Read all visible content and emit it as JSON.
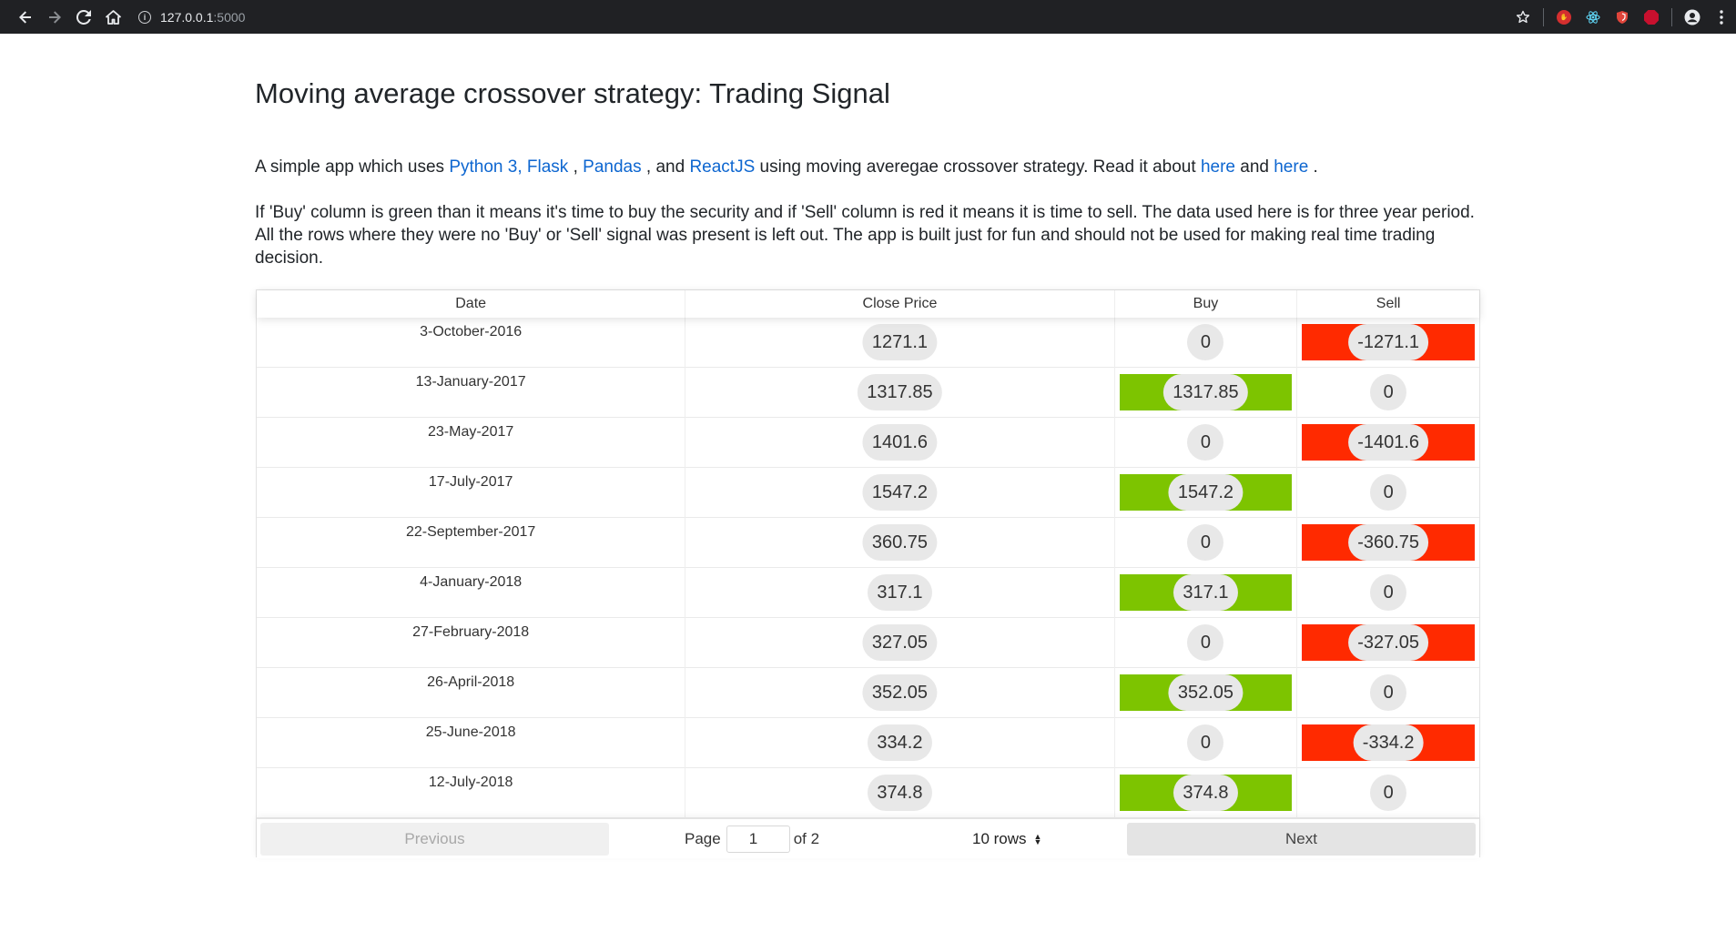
{
  "browser": {
    "url_host": "127.0.0.1",
    "url_port": ":5000",
    "extensions": [
      "ABP"
    ]
  },
  "page": {
    "title": "Moving average crossover strategy: Trading Signal",
    "intro": {
      "prefix": "A simple app which uses ",
      "link_python": "Python 3,",
      "space1": " ",
      "link_flask": "Flask",
      "sep1": " , ",
      "link_pandas": "Pandas",
      "sep2": " , and ",
      "link_react": "ReactJS",
      "middle": " using moving averegae crossover strategy. Read it about ",
      "link_here1": "here",
      "and": " and ",
      "link_here2": "here",
      "end": " ."
    },
    "description": "If 'Buy' column is green than it means it's time to buy the security and if 'Sell' column is red it means it is time to sell. The data used here is for three year period. All the rows where they were no 'Buy' or 'Sell' signal was present is left out. The app is built just for fun and should not be used for making real time trading decision."
  },
  "table": {
    "headers": {
      "date": "Date",
      "close": "Close Price",
      "buy": "Buy",
      "sell": "Sell"
    },
    "rows": [
      {
        "date": "3-October-2016",
        "close": "1271.1",
        "buy": "0",
        "sell": "-1271.1",
        "signal": "sell"
      },
      {
        "date": "13-January-2017",
        "close": "1317.85",
        "buy": "1317.85",
        "sell": "0",
        "signal": "buy"
      },
      {
        "date": "23-May-2017",
        "close": "1401.6",
        "buy": "0",
        "sell": "-1401.6",
        "signal": "sell"
      },
      {
        "date": "17-July-2017",
        "close": "1547.2",
        "buy": "1547.2",
        "sell": "0",
        "signal": "buy"
      },
      {
        "date": "22-September-2017",
        "close": "360.75",
        "buy": "0",
        "sell": "-360.75",
        "signal": "sell"
      },
      {
        "date": "4-January-2018",
        "close": "317.1",
        "buy": "317.1",
        "sell": "0",
        "signal": "buy"
      },
      {
        "date": "27-February-2018",
        "close": "327.05",
        "buy": "0",
        "sell": "-327.05",
        "signal": "sell"
      },
      {
        "date": "26-April-2018",
        "close": "352.05",
        "buy": "352.05",
        "sell": "0",
        "signal": "buy"
      },
      {
        "date": "25-June-2018",
        "close": "334.2",
        "buy": "0",
        "sell": "-334.2",
        "signal": "sell"
      },
      {
        "date": "12-July-2018",
        "close": "374.8",
        "buy": "374.8",
        "sell": "0",
        "signal": "buy"
      }
    ],
    "colors": {
      "buy": "#7dc400",
      "sell": "#ff2a00"
    }
  },
  "pagination": {
    "previous": "Previous",
    "page_label": "Page",
    "page_value": "1",
    "of_label": "of 2",
    "rows_select": "10 rows",
    "next": "Next"
  }
}
